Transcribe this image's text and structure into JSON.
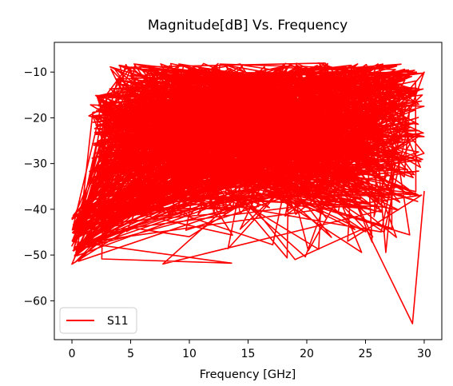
{
  "chart_data": {
    "type": "line",
    "title": "Magnitude[dB] Vs. Frequency",
    "xlabel": "Frequency [GHz]",
    "ylabel": "",
    "xlim": [
      -1.5,
      31.5
    ],
    "ylim": [
      -68.5,
      -3.5
    ],
    "xticks": [
      0,
      5,
      10,
      15,
      20,
      25,
      30
    ],
    "yticks": [
      -60,
      -50,
      -40,
      -30,
      -20,
      -10
    ],
    "grid": false,
    "legend": {
      "position": "lower-left"
    },
    "series": [
      {
        "name": "S11",
        "color": "#ff0000",
        "generated_points": 1500,
        "path_x": [
          0,
          4,
          8,
          12,
          16,
          20,
          24,
          28,
          30,
          26,
          22,
          18,
          14,
          10,
          6,
          2,
          0,
          5,
          10,
          15,
          19,
          25,
          29,
          30
        ],
        "path_y": [
          -48,
          -30,
          -18,
          -11,
          -25,
          -12,
          -33,
          -16,
          -10,
          -38,
          -20,
          -28,
          -15,
          -35,
          -22,
          -40,
          -52,
          -44,
          -46,
          -38,
          -51,
          -44,
          -65,
          -36
        ]
      }
    ]
  }
}
